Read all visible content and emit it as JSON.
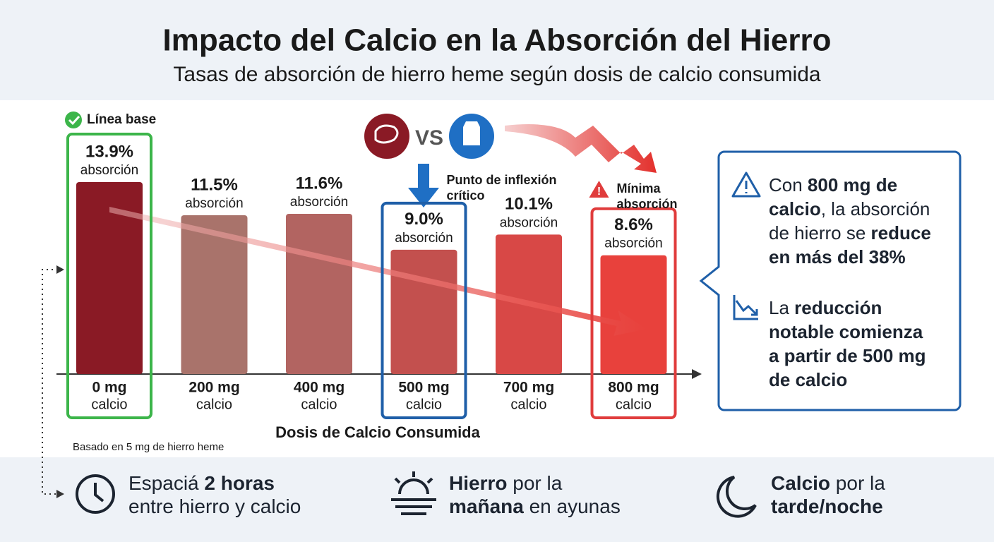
{
  "header": {
    "title": "Impacto del Calcio en la Absorción del Hierro",
    "subtitle": "Tasas de absorción de hierro heme según dosis de calcio consumida"
  },
  "chart_data": {
    "type": "bar",
    "categories": [
      "0 mg",
      "200 mg",
      "400 mg",
      "500 mg",
      "700 mg",
      "800 mg"
    ],
    "category_unit": "calcio",
    "values": [
      13.9,
      11.5,
      11.6,
      9.0,
      10.1,
      8.6
    ],
    "value_labels": [
      "13.9%",
      "11.5%",
      "11.6%",
      "9.0%",
      "10.1%",
      "8.6%"
    ],
    "value_caption": "absorción",
    "colors": [
      "#8a1a25",
      "#a9736b",
      "#b26461",
      "#c3504e",
      "#d84846",
      "#e8413c"
    ],
    "x_label": "Dosis de Calcio Consumida",
    "note": "Basado en 5 mg de hierro heme",
    "annotations": [
      {
        "index": 0,
        "color": "#3cb54a",
        "label": [
          "Línea base"
        ]
      },
      {
        "index": 3,
        "color": "#1f5fa8",
        "label": [
          "Punto de inflexión",
          "crítico"
        ]
      },
      {
        "index": 5,
        "color": "#e03c3c",
        "label": [
          "Mínima",
          "absorción"
        ]
      }
    ]
  },
  "side_panel": {
    "items": [
      {
        "lines": [
          [
            {
              "text": "Con ",
              "bold": false
            },
            {
              "text": "800 mg de",
              "bold": true
            }
          ],
          [
            {
              "text": "calcio",
              "bold": true
            },
            {
              "text": ", la absorción",
              "bold": false
            }
          ],
          [
            {
              "text": "de hierro se ",
              "bold": false
            },
            {
              "text": "reduce",
              "bold": true
            }
          ],
          [
            {
              "text": "en más del 38%",
              "bold": true
            }
          ]
        ]
      },
      {
        "lines": [
          [
            {
              "text": "La ",
              "bold": false
            },
            {
              "text": "reducción",
              "bold": true
            }
          ],
          [
            {
              "text": "notable comienza",
              "bold": true
            }
          ],
          [
            {
              "text": "a partir de 500 mg",
              "bold": true
            }
          ],
          [
            {
              "text": "de calcio",
              "bold": true
            }
          ]
        ]
      }
    ]
  },
  "tips": [
    {
      "lines": [
        [
          {
            "text": "Espaciá ",
            "bold": false
          },
          {
            "text": "2 horas",
            "bold": true
          }
        ],
        [
          {
            "text": "entre hierro y calcio",
            "bold": false
          }
        ]
      ]
    },
    {
      "lines": [
        [
          {
            "text": "Hierro",
            "bold": true
          },
          {
            "text": " por la",
            "bold": false
          }
        ],
        [
          {
            "text": "mañana",
            "bold": true
          },
          {
            "text": " en ayunas",
            "bold": false
          }
        ]
      ]
    },
    {
      "lines": [
        [
          {
            "text": "Calcio",
            "bold": true
          },
          {
            "text": " por la",
            "bold": false
          }
        ],
        [
          {
            "text": "tarde/noche",
            "bold": true
          }
        ]
      ]
    }
  ]
}
